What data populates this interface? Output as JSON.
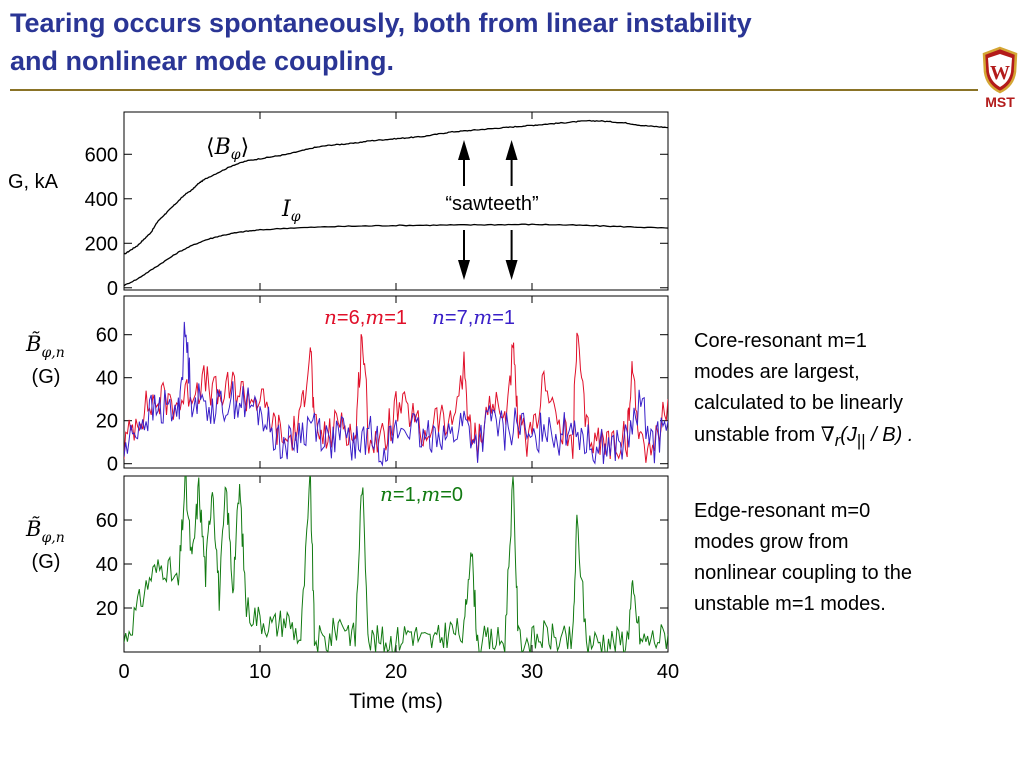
{
  "slide": {
    "title_line1": "Tearing occurs spontaneously, both from linear instability",
    "title_line2": "and nonlinear mode coupling.",
    "logo_text": "MST",
    "colors": {
      "title": "#2a3595",
      "rule": "#8a7326",
      "logo": "#b31b1b"
    }
  },
  "notes": {
    "core": {
      "lines": [
        "Core-resonant m=1",
        "modes are largest,",
        "calculated to be linearly",
        "unstable from "
      ],
      "grad": "∇",
      "grad_sub": "r",
      "paren_open": "(J",
      "par_sub": "||",
      "ratio_tail": " / B) ."
    },
    "edge": {
      "lines": [
        "Edge-resonant m=0",
        "modes grow from",
        "nonlinear coupling to the",
        "unstable m=1 modes."
      ]
    }
  },
  "chart_data": [
    {
      "type": "line",
      "ylabel": "G, kA",
      "yticks": [
        0,
        200,
        400,
        600
      ],
      "ylim": [
        -10,
        790
      ],
      "xlim": [
        0,
        40
      ],
      "series": [
        {
          "name": "⟨Bφ⟩",
          "color": "#000000",
          "x": [
            0,
            0.5,
            1,
            1.5,
            2,
            2.5,
            3,
            3.5,
            4,
            4.5,
            5,
            5.5,
            6,
            7,
            8,
            9,
            10,
            11,
            12,
            13,
            14,
            15,
            16,
            17,
            18,
            19,
            20,
            21,
            22,
            23,
            24,
            25,
            26,
            27,
            28,
            29,
            30,
            31,
            32,
            33,
            34,
            35,
            36,
            37,
            38,
            39,
            40
          ],
          "values": [
            150,
            170,
            190,
            220,
            250,
            300,
            330,
            360,
            390,
            420,
            440,
            470,
            490,
            520,
            550,
            570,
            580,
            590,
            600,
            615,
            630,
            640,
            645,
            650,
            660,
            665,
            670,
            675,
            680,
            690,
            700,
            705,
            710,
            715,
            720,
            725,
            730,
            735,
            740,
            745,
            750,
            750,
            745,
            740,
            730,
            725,
            720
          ]
        },
        {
          "name": "Iφ",
          "color": "#000000",
          "x": [
            0,
            1,
            2,
            3,
            4,
            5,
            6,
            7,
            8,
            9,
            10,
            12,
            14,
            16,
            18,
            20,
            22,
            24,
            26,
            28,
            30,
            32,
            34,
            36,
            38,
            40
          ],
          "values": [
            10,
            40,
            80,
            120,
            160,
            190,
            215,
            232,
            245,
            254,
            260,
            268,
            272,
            276,
            278,
            280,
            281,
            282,
            283,
            284,
            285,
            283,
            280,
            276,
            272,
            268
          ]
        }
      ],
      "annotations": [
        {
          "text": "“sawteeth”",
          "x": [
            25,
            28.5
          ]
        }
      ]
    },
    {
      "type": "line",
      "ylabel_main": "B̃",
      "ylabel_sub": "φ,n",
      "ylabel_unit": "(G)",
      "yticks": [
        0,
        20,
        40,
        60
      ],
      "ylim": [
        -2,
        78
      ],
      "xlim": [
        0,
        40
      ],
      "series": [
        {
          "name": "n=6,m=1",
          "name_n": "n",
          "name_n_val": "=6,",
          "name_m": "m",
          "name_m_val": "=1",
          "color": "#e0102a",
          "x": [
            0,
            1,
            2,
            3,
            4,
            5,
            6,
            7,
            8,
            9,
            10,
            11,
            12,
            13,
            13.7,
            14,
            15,
            16,
            17,
            17.5,
            18,
            19,
            20,
            21,
            22,
            23,
            24,
            25,
            25.5,
            26,
            27,
            28,
            28.6,
            29,
            30,
            31,
            32,
            33,
            33.3,
            34,
            35,
            36,
            37,
            37.4,
            38,
            39,
            40
          ],
          "values": [
            8,
            22,
            28,
            30,
            28,
            35,
            38,
            30,
            36,
            32,
            30,
            18,
            10,
            20,
            58,
            15,
            12,
            22,
            10,
            62,
            12,
            10,
            25,
            24,
            12,
            22,
            16,
            45,
            12,
            10,
            30,
            20,
            52,
            15,
            10,
            42,
            15,
            10,
            58,
            15,
            10,
            10,
            12,
            45,
            10,
            8,
            30
          ]
        },
        {
          "name": "n=7,m=1",
          "name_n": "n",
          "name_n_val": "=7,",
          "name_m": "m",
          "name_m_val": "=1",
          "color": "#3a20c8",
          "x": [
            0,
            1,
            2,
            3,
            4,
            4.5,
            5,
            6,
            7,
            8,
            9,
            10,
            11,
            12,
            13,
            14,
            15,
            16,
            17,
            18,
            19,
            20,
            21,
            22,
            23,
            24,
            25,
            26,
            27,
            28,
            29,
            30,
            31,
            32,
            33,
            34,
            35,
            36,
            37,
            38,
            39,
            40
          ],
          "values": [
            5,
            18,
            24,
            26,
            24,
            62,
            30,
            28,
            26,
            30,
            28,
            24,
            14,
            8,
            14,
            20,
            10,
            14,
            8,
            14,
            8,
            14,
            18,
            10,
            16,
            12,
            20,
            8,
            22,
            14,
            20,
            8,
            20,
            12,
            20,
            10,
            8,
            8,
            10,
            28,
            8,
            20
          ]
        }
      ]
    },
    {
      "type": "line",
      "ylabel_main": "B̃",
      "ylabel_sub": "φ,n",
      "ylabel_unit": "(G)",
      "yticks": [
        20,
        40,
        60
      ],
      "ylim": [
        0,
        80
      ],
      "xlim": [
        0,
        40
      ],
      "xticks": [
        0,
        10,
        20,
        30,
        40
      ],
      "xlabel": "Time (ms)",
      "series": [
        {
          "name": "n=1,m=0",
          "name_n": "n",
          "name_n_val": "=1,",
          "name_m": "m",
          "name_m_val": "=0",
          "color": "#127a12",
          "x": [
            0,
            1,
            2,
            3,
            4,
            4.5,
            5,
            5.5,
            6,
            6.5,
            7,
            7.5,
            8,
            8.5,
            9,
            10,
            11,
            12,
            13,
            13.7,
            14,
            15,
            16,
            17,
            17.5,
            18,
            19,
            20,
            21,
            22,
            23,
            24,
            25,
            25.5,
            26,
            27,
            28,
            28.6,
            29,
            30,
            31,
            32,
            33,
            33.3,
            34,
            35,
            36,
            37,
            37.4,
            38,
            39,
            40
          ],
          "values": [
            5,
            20,
            35,
            40,
            30,
            78,
            40,
            75,
            35,
            78,
            25,
            75,
            30,
            75,
            20,
            15,
            12,
            15,
            6,
            78,
            6,
            5,
            15,
            6,
            78,
            6,
            5,
            5,
            10,
            5,
            5,
            10,
            8,
            50,
            5,
            5,
            5,
            78,
            6,
            5,
            8,
            5,
            5,
            60,
            5,
            5,
            5,
            6,
            28,
            5,
            6,
            8
          ]
        }
      ]
    }
  ]
}
